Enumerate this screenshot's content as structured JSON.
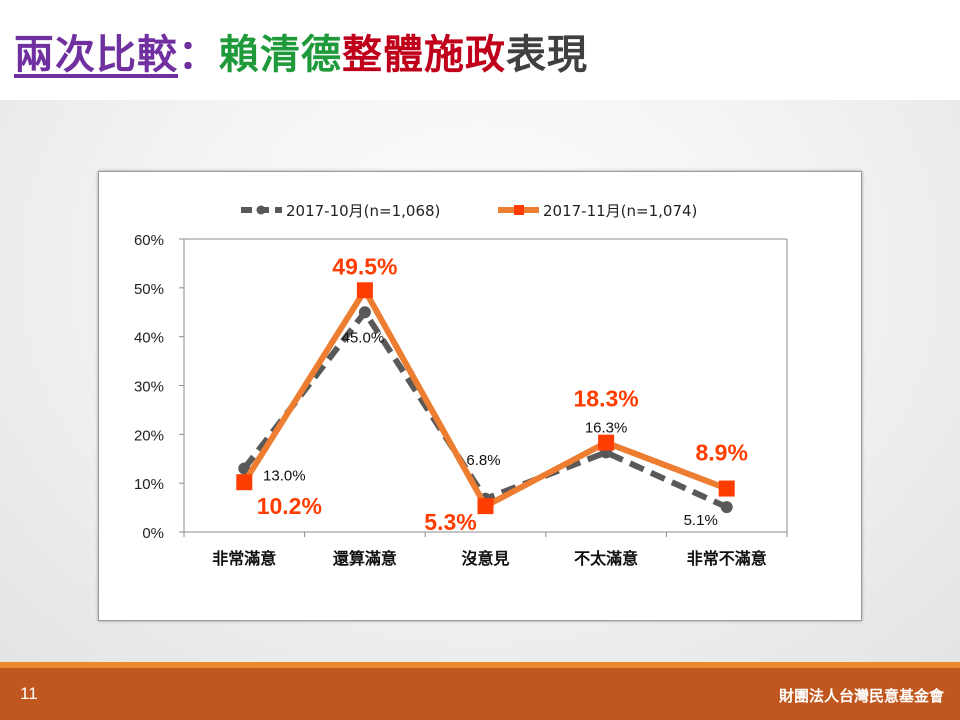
{
  "title": {
    "prefix": "兩次比較",
    "colon": "：",
    "part_green": "賴清德",
    "part_red": "整體施政",
    "part_dark": "表現"
  },
  "footer": {
    "page_number": "11",
    "organization": "財團法人台灣民意基金會"
  },
  "chart_data": {
    "type": "line",
    "categories": [
      "非常滿意",
      "還算滿意",
      "沒意見",
      "不太滿意",
      "非常不滿意"
    ],
    "series": [
      {
        "name": "2017-10月(n=1,068)",
        "values": [
          13.0,
          45.0,
          6.8,
          16.3,
          5.1
        ],
        "labels": [
          "13.0%",
          "45.0%",
          "6.8%",
          "16.3%",
          "5.1%"
        ],
        "color": "#595959",
        "style": "dashed",
        "marker": "circle"
      },
      {
        "name": "2017-11月(n=1,074)",
        "values": [
          10.2,
          49.5,
          5.3,
          18.3,
          8.9
        ],
        "labels": [
          "10.2%",
          "49.5%",
          "5.3%",
          "18.3%",
          "8.9%"
        ],
        "color": "#ed7d31",
        "style": "solid",
        "marker": "square",
        "marker_color": "#ff3d00",
        "label_color": "#ff3d00"
      }
    ],
    "ylim": [
      0,
      60
    ],
    "yticks": [
      "0%",
      "10%",
      "20%",
      "30%",
      "40%",
      "50%",
      "60%"
    ],
    "legend": "top",
    "grid": false
  }
}
